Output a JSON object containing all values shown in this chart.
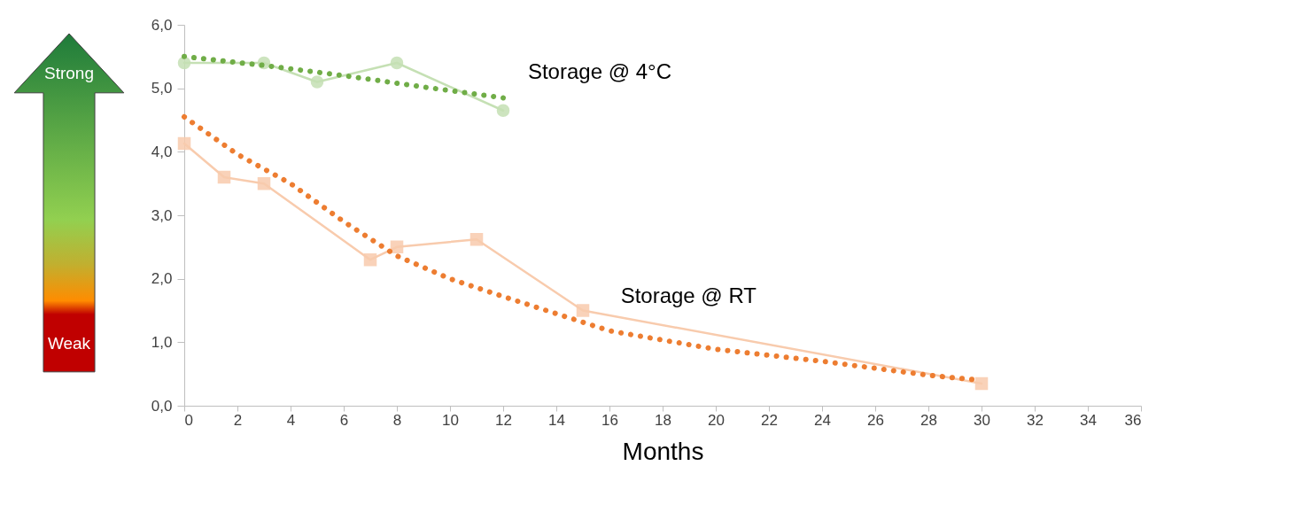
{
  "chart_data": {
    "type": "line",
    "xlabel": "Months",
    "xlim": [
      0,
      36
    ],
    "xticks": [
      0,
      2,
      4,
      6,
      8,
      10,
      12,
      14,
      16,
      18,
      20,
      22,
      24,
      26,
      28,
      30,
      32,
      34,
      36
    ],
    "ylim": [
      0,
      6
    ],
    "yticks": [
      {
        "value": 0,
        "label": "0,0"
      },
      {
        "value": 1,
        "label": "1,0"
      },
      {
        "value": 2,
        "label": "2,0"
      },
      {
        "value": 3,
        "label": "3,0"
      },
      {
        "value": 4,
        "label": "4,0"
      },
      {
        "value": 5,
        "label": "5,0"
      },
      {
        "value": 6,
        "label": "6,0"
      }
    ],
    "grid": false,
    "annotations": [
      "Strong",
      "Weak"
    ],
    "series": [
      {
        "name": "Storage @ 4°C",
        "color": "#c5e0b4",
        "marker": "circle",
        "line_style": "solid",
        "x": [
          0,
          3,
          5,
          8,
          12
        ],
        "values": [
          5.4,
          5.4,
          5.1,
          5.4,
          4.65
        ]
      },
      {
        "color": "#70ad47",
        "marker": "none",
        "line_style": "dotted",
        "x": [
          0,
          3,
          6,
          9,
          12
        ],
        "values": [
          5.5,
          5.36,
          5.2,
          5.02,
          4.85
        ]
      },
      {
        "name": "Storage @ RT",
        "color": "#f8cbad",
        "marker": "square",
        "line_style": "solid",
        "x": [
          0,
          1.5,
          3,
          7,
          8,
          11,
          15,
          30
        ],
        "values": [
          4.13,
          3.6,
          3.5,
          2.3,
          2.5,
          2.62,
          1.5,
          0.35
        ]
      },
      {
        "color": "#ed7d31",
        "marker": "none",
        "line_style": "dotted",
        "x": [
          0,
          2,
          4,
          6,
          8,
          10,
          12,
          16,
          20,
          24,
          28,
          30
        ],
        "values": [
          4.55,
          3.96,
          3.5,
          2.9,
          2.36,
          2.0,
          1.72,
          1.18,
          0.89,
          0.7,
          0.48,
          0.4
        ]
      }
    ]
  }
}
